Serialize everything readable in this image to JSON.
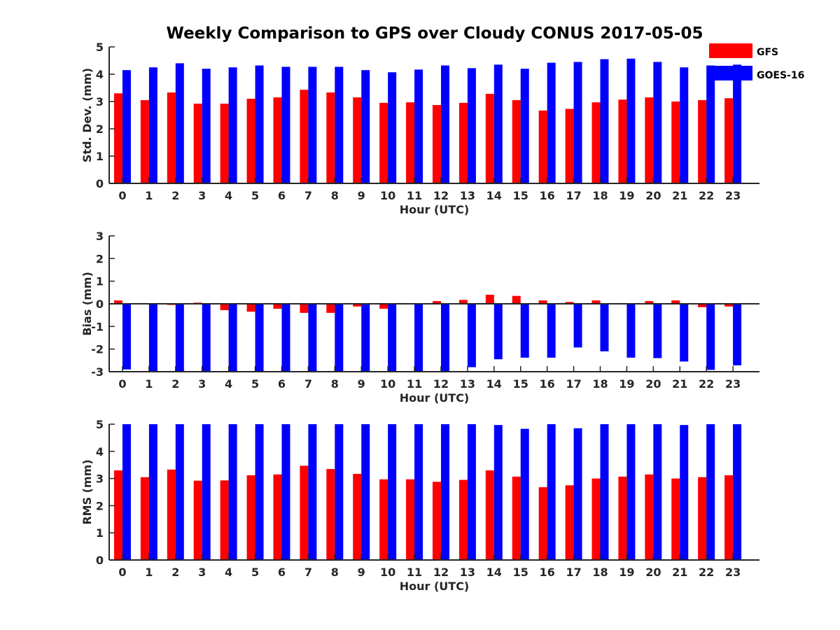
{
  "title": "Weekly Comparison to GPS over Cloudy CONUS 2017-05-05",
  "colors": {
    "GFS": "#ff0000",
    "GOES-16": "#0000ff"
  },
  "legend": {
    "placement": "top-right",
    "entries": [
      "GFS",
      "GOES-16"
    ]
  },
  "chart_data": [
    {
      "type": "bar",
      "ylabel": "Std. Dev. (mm)",
      "xlabel": "Hour (UTC)",
      "ylim": [
        0,
        5
      ],
      "yticks": [
        0,
        1,
        2,
        3,
        4,
        5
      ],
      "categories": [
        "0",
        "1",
        "2",
        "3",
        "4",
        "5",
        "6",
        "7",
        "8",
        "9",
        "10",
        "11",
        "12",
        "13",
        "14",
        "15",
        "16",
        "17",
        "18",
        "19",
        "20",
        "21",
        "22",
        "23"
      ],
      "series": [
        {
          "name": "GFS",
          "values": [
            3.3,
            3.05,
            3.33,
            2.92,
            2.92,
            3.1,
            3.15,
            3.43,
            3.33,
            3.15,
            2.95,
            2.97,
            2.87,
            2.95,
            3.28,
            3.05,
            2.67,
            2.73,
            2.97,
            3.07,
            3.15,
            3.0,
            3.05,
            3.12
          ]
        },
        {
          "name": "GOES-16",
          "values": [
            4.15,
            4.25,
            4.4,
            4.2,
            4.25,
            4.32,
            4.27,
            4.27,
            4.27,
            4.15,
            4.07,
            4.17,
            4.32,
            4.22,
            4.35,
            4.2,
            4.42,
            4.45,
            4.55,
            4.57,
            4.45,
            4.25,
            4.32,
            4.35
          ]
        }
      ]
    },
    {
      "type": "bar",
      "ylabel": "Bias (mm)",
      "xlabel": "Hour (UTC)",
      "ylim": [
        -3,
        3
      ],
      "yticks": [
        -3,
        -2,
        -1,
        0,
        1,
        2,
        3
      ],
      "categories": [
        "0",
        "1",
        "2",
        "3",
        "4",
        "5",
        "6",
        "7",
        "8",
        "9",
        "10",
        "11",
        "12",
        "13",
        "14",
        "15",
        "16",
        "17",
        "18",
        "19",
        "20",
        "21",
        "22",
        "23"
      ],
      "series": [
        {
          "name": "GFS",
          "values": [
            0.15,
            0.0,
            -0.05,
            0.05,
            -0.28,
            -0.35,
            -0.22,
            -0.4,
            -0.4,
            -0.12,
            -0.22,
            -0.03,
            0.12,
            0.17,
            0.4,
            0.35,
            0.15,
            0.08,
            0.15,
            0.0,
            0.12,
            0.15,
            -0.15,
            -0.12
          ]
        },
        {
          "name": "GOES-16",
          "values": [
            -2.9,
            -3.0,
            -3.0,
            -3.0,
            -3.0,
            -3.0,
            -3.0,
            -3.0,
            -3.0,
            -3.0,
            -3.0,
            -3.0,
            -3.0,
            -2.8,
            -2.45,
            -2.38,
            -2.38,
            -1.93,
            -2.1,
            -2.38,
            -2.4,
            -2.55,
            -2.92,
            -2.72
          ]
        }
      ]
    },
    {
      "type": "bar",
      "ylabel": "RMS (mm)",
      "xlabel": "Hour (UTC)",
      "ylim": [
        0,
        5
      ],
      "yticks": [
        0,
        1,
        2,
        3,
        4,
        5
      ],
      "categories": [
        "0",
        "1",
        "2",
        "3",
        "4",
        "5",
        "6",
        "7",
        "8",
        "9",
        "10",
        "11",
        "12",
        "13",
        "14",
        "15",
        "16",
        "17",
        "18",
        "19",
        "20",
        "21",
        "22",
        "23"
      ],
      "series": [
        {
          "name": "GFS",
          "values": [
            3.3,
            3.05,
            3.33,
            2.92,
            2.93,
            3.12,
            3.15,
            3.47,
            3.35,
            3.17,
            2.97,
            2.97,
            2.88,
            2.95,
            3.3,
            3.07,
            2.68,
            2.75,
            3.0,
            3.07,
            3.15,
            3.0,
            3.05,
            3.12
          ]
        },
        {
          "name": "GOES-16",
          "values": [
            5.0,
            5.0,
            5.0,
            5.0,
            5.0,
            5.0,
            5.0,
            5.0,
            5.0,
            5.0,
            5.0,
            5.0,
            5.0,
            5.0,
            4.97,
            4.83,
            5.0,
            4.85,
            5.0,
            5.0,
            5.0,
            4.97,
            5.0,
            5.0
          ]
        }
      ]
    }
  ]
}
